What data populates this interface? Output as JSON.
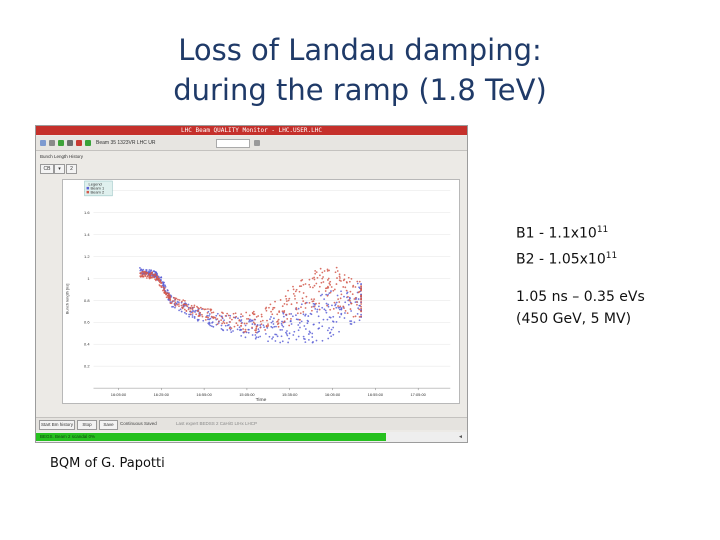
{
  "slide": {
    "title_line1": "Loss of Landau damping:",
    "title_line2": "during the ramp (1.8 TeV)",
    "intensity_b1_prefix": "B1 - 1.1x10",
    "intensity_b1_exp": "11",
    "intensity_b2_prefix": "B2 - 1.05x10",
    "intensity_b2_exp": "11",
    "params_line1": "1.05 ns – 0.35 eVs",
    "params_line2": "(450 GeV, 5 MV)",
    "credit": "BQM of G. Papotti"
  },
  "app": {
    "window_title": "LHC Beam QUALITY Monitor - LHC.USER.LHC",
    "toolbar_text": "Beam 35 1323VR  LHC  UR",
    "panel_label": "Bunch Length History",
    "panel_btn1": "CB",
    "panel_btn2": "2",
    "btn_start": "Start Bm history",
    "btn_stop": "Stop",
    "btn_save": "Save",
    "continuous_saved": "Continuous Saved",
    "bottom_text": "Last expert BEDSS 2 CaHiG LIHx LHCP",
    "status_text": "BEGS. Beam 2 scandal 0%",
    "status_end": "◄",
    "colors": {
      "titlebar": "#c5302b",
      "beam1": "#5b5fd6",
      "beam2": "#d2584b",
      "status": "#26c11f"
    }
  },
  "chart_data": {
    "type": "scatter",
    "title": "",
    "xlabel": "Time",
    "ylabel": "Bunch length [ns]",
    "ylim": [
      0.0,
      1.85
    ],
    "yticks": [
      0.2,
      0.4,
      0.6,
      0.8,
      1.0,
      1.2,
      1.4,
      1.6,
      1.8
    ],
    "ytick_labels": [
      "0.2",
      "0.4",
      "0.6",
      "0.8",
      "1",
      "1.2",
      "1.4",
      "1.6",
      "1.8"
    ],
    "xlim": [
      0.0,
      1.0
    ],
    "xticks": [
      0.07,
      0.19,
      0.31,
      0.43,
      0.55,
      0.67,
      0.79,
      0.91
    ],
    "xtick_labels": [
      "16:05:00",
      "16:25:00",
      "16:55:00",
      "15:05:00",
      "15:35:00",
      "16:05:00",
      "16:55:00",
      "17:05:00"
    ],
    "legend": {
      "title": "Legend",
      "placement": "top-left",
      "entries": [
        "Beam 1",
        "Beam 2"
      ]
    },
    "series": [
      {
        "name": "Beam 1",
        "color": "#5b5fd6",
        "points": [
          [
            0.13,
            1.07
          ],
          [
            0.14,
            1.06
          ],
          [
            0.15,
            1.05
          ],
          [
            0.16,
            1.05
          ],
          [
            0.17,
            1.04
          ],
          [
            0.175,
            1.03
          ],
          [
            0.18,
            1.01
          ],
          [
            0.19,
            0.98
          ],
          [
            0.2,
            0.92
          ],
          [
            0.21,
            0.84
          ],
          [
            0.22,
            0.79
          ],
          [
            0.24,
            0.75
          ],
          [
            0.26,
            0.72
          ],
          [
            0.28,
            0.69
          ],
          [
            0.3,
            0.66
          ],
          [
            0.33,
            0.63
          ],
          [
            0.36,
            0.6
          ],
          [
            0.39,
            0.58
          ],
          [
            0.42,
            0.56
          ],
          [
            0.45,
            0.55
          ],
          [
            0.48,
            0.54
          ],
          [
            0.51,
            0.54
          ],
          [
            0.54,
            0.56
          ],
          [
            0.57,
            0.58
          ],
          [
            0.6,
            0.6
          ],
          [
            0.63,
            0.63
          ],
          [
            0.66,
            0.67
          ],
          [
            0.69,
            0.71
          ],
          [
            0.72,
            0.75
          ],
          [
            0.75,
            0.8
          ]
        ],
        "spread": [
          0.03,
          0.03,
          0.03,
          0.03,
          0.03,
          0.03,
          0.03,
          0.03,
          0.04,
          0.04,
          0.05,
          0.05,
          0.06,
          0.06,
          0.07,
          0.07,
          0.08,
          0.09,
          0.1,
          0.11,
          0.12,
          0.14,
          0.16,
          0.18,
          0.2,
          0.22,
          0.22,
          0.2,
          0.18,
          0.16
        ]
      },
      {
        "name": "Beam 2",
        "color": "#d2584b",
        "points": [
          [
            0.13,
            1.04
          ],
          [
            0.14,
            1.04
          ],
          [
            0.15,
            1.03
          ],
          [
            0.16,
            1.02
          ],
          [
            0.17,
            1.03
          ],
          [
            0.18,
            0.99
          ],
          [
            0.19,
            0.94
          ],
          [
            0.2,
            0.88
          ],
          [
            0.21,
            0.83
          ],
          [
            0.22,
            0.8
          ],
          [
            0.24,
            0.77
          ],
          [
            0.26,
            0.74
          ],
          [
            0.28,
            0.71
          ],
          [
            0.3,
            0.69
          ],
          [
            0.33,
            0.66
          ],
          [
            0.36,
            0.63
          ],
          [
            0.39,
            0.61
          ],
          [
            0.42,
            0.6
          ],
          [
            0.45,
            0.61
          ],
          [
            0.48,
            0.63
          ],
          [
            0.51,
            0.67
          ],
          [
            0.54,
            0.72
          ],
          [
            0.57,
            0.78
          ],
          [
            0.6,
            0.84
          ],
          [
            0.63,
            0.89
          ],
          [
            0.66,
            0.91
          ],
          [
            0.69,
            0.89
          ],
          [
            0.72,
            0.84
          ],
          [
            0.75,
            0.8
          ]
        ],
        "spread": [
          0.03,
          0.03,
          0.03,
          0.03,
          0.03,
          0.03,
          0.03,
          0.03,
          0.04,
          0.04,
          0.05,
          0.05,
          0.05,
          0.06,
          0.06,
          0.07,
          0.08,
          0.09,
          0.11,
          0.13,
          0.15,
          0.17,
          0.19,
          0.2,
          0.21,
          0.21,
          0.2,
          0.18,
          0.16
        ]
      }
    ]
  }
}
